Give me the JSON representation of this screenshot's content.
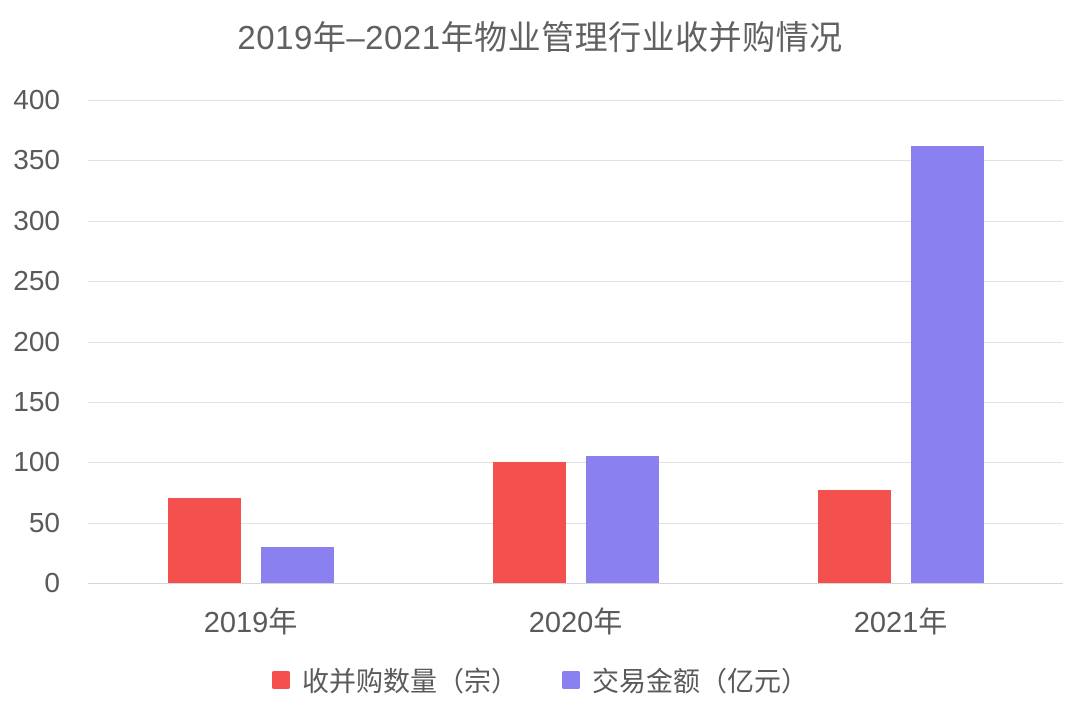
{
  "title": "2019年–2021年物业管理行业收并购情况",
  "chart_data": {
    "type": "bar",
    "title": "2019年–2021年物业管理行业收并购情况",
    "categories": [
      "2019年",
      "2020年",
      "2021年"
    ],
    "series": [
      {
        "name": "收并购数量（宗）",
        "color": "#F4504E",
        "values": [
          70,
          100,
          77
        ]
      },
      {
        "name": "交易金额（亿元）",
        "color": "#8B80F0",
        "values": [
          30,
          105,
          362
        ]
      }
    ],
    "xlabel": "",
    "ylabel": "",
    "ylim": [
      0,
      400
    ],
    "yticks": [
      0,
      50,
      100,
      150,
      200,
      250,
      300,
      350,
      400
    ],
    "grid": true,
    "legend_position": "bottom"
  },
  "colors": {
    "background": "#ffffff",
    "grid": "#e2e2e2",
    "text": "#5a5a5a",
    "series_1": "#F4504E",
    "series_2": "#8B80F0"
  }
}
